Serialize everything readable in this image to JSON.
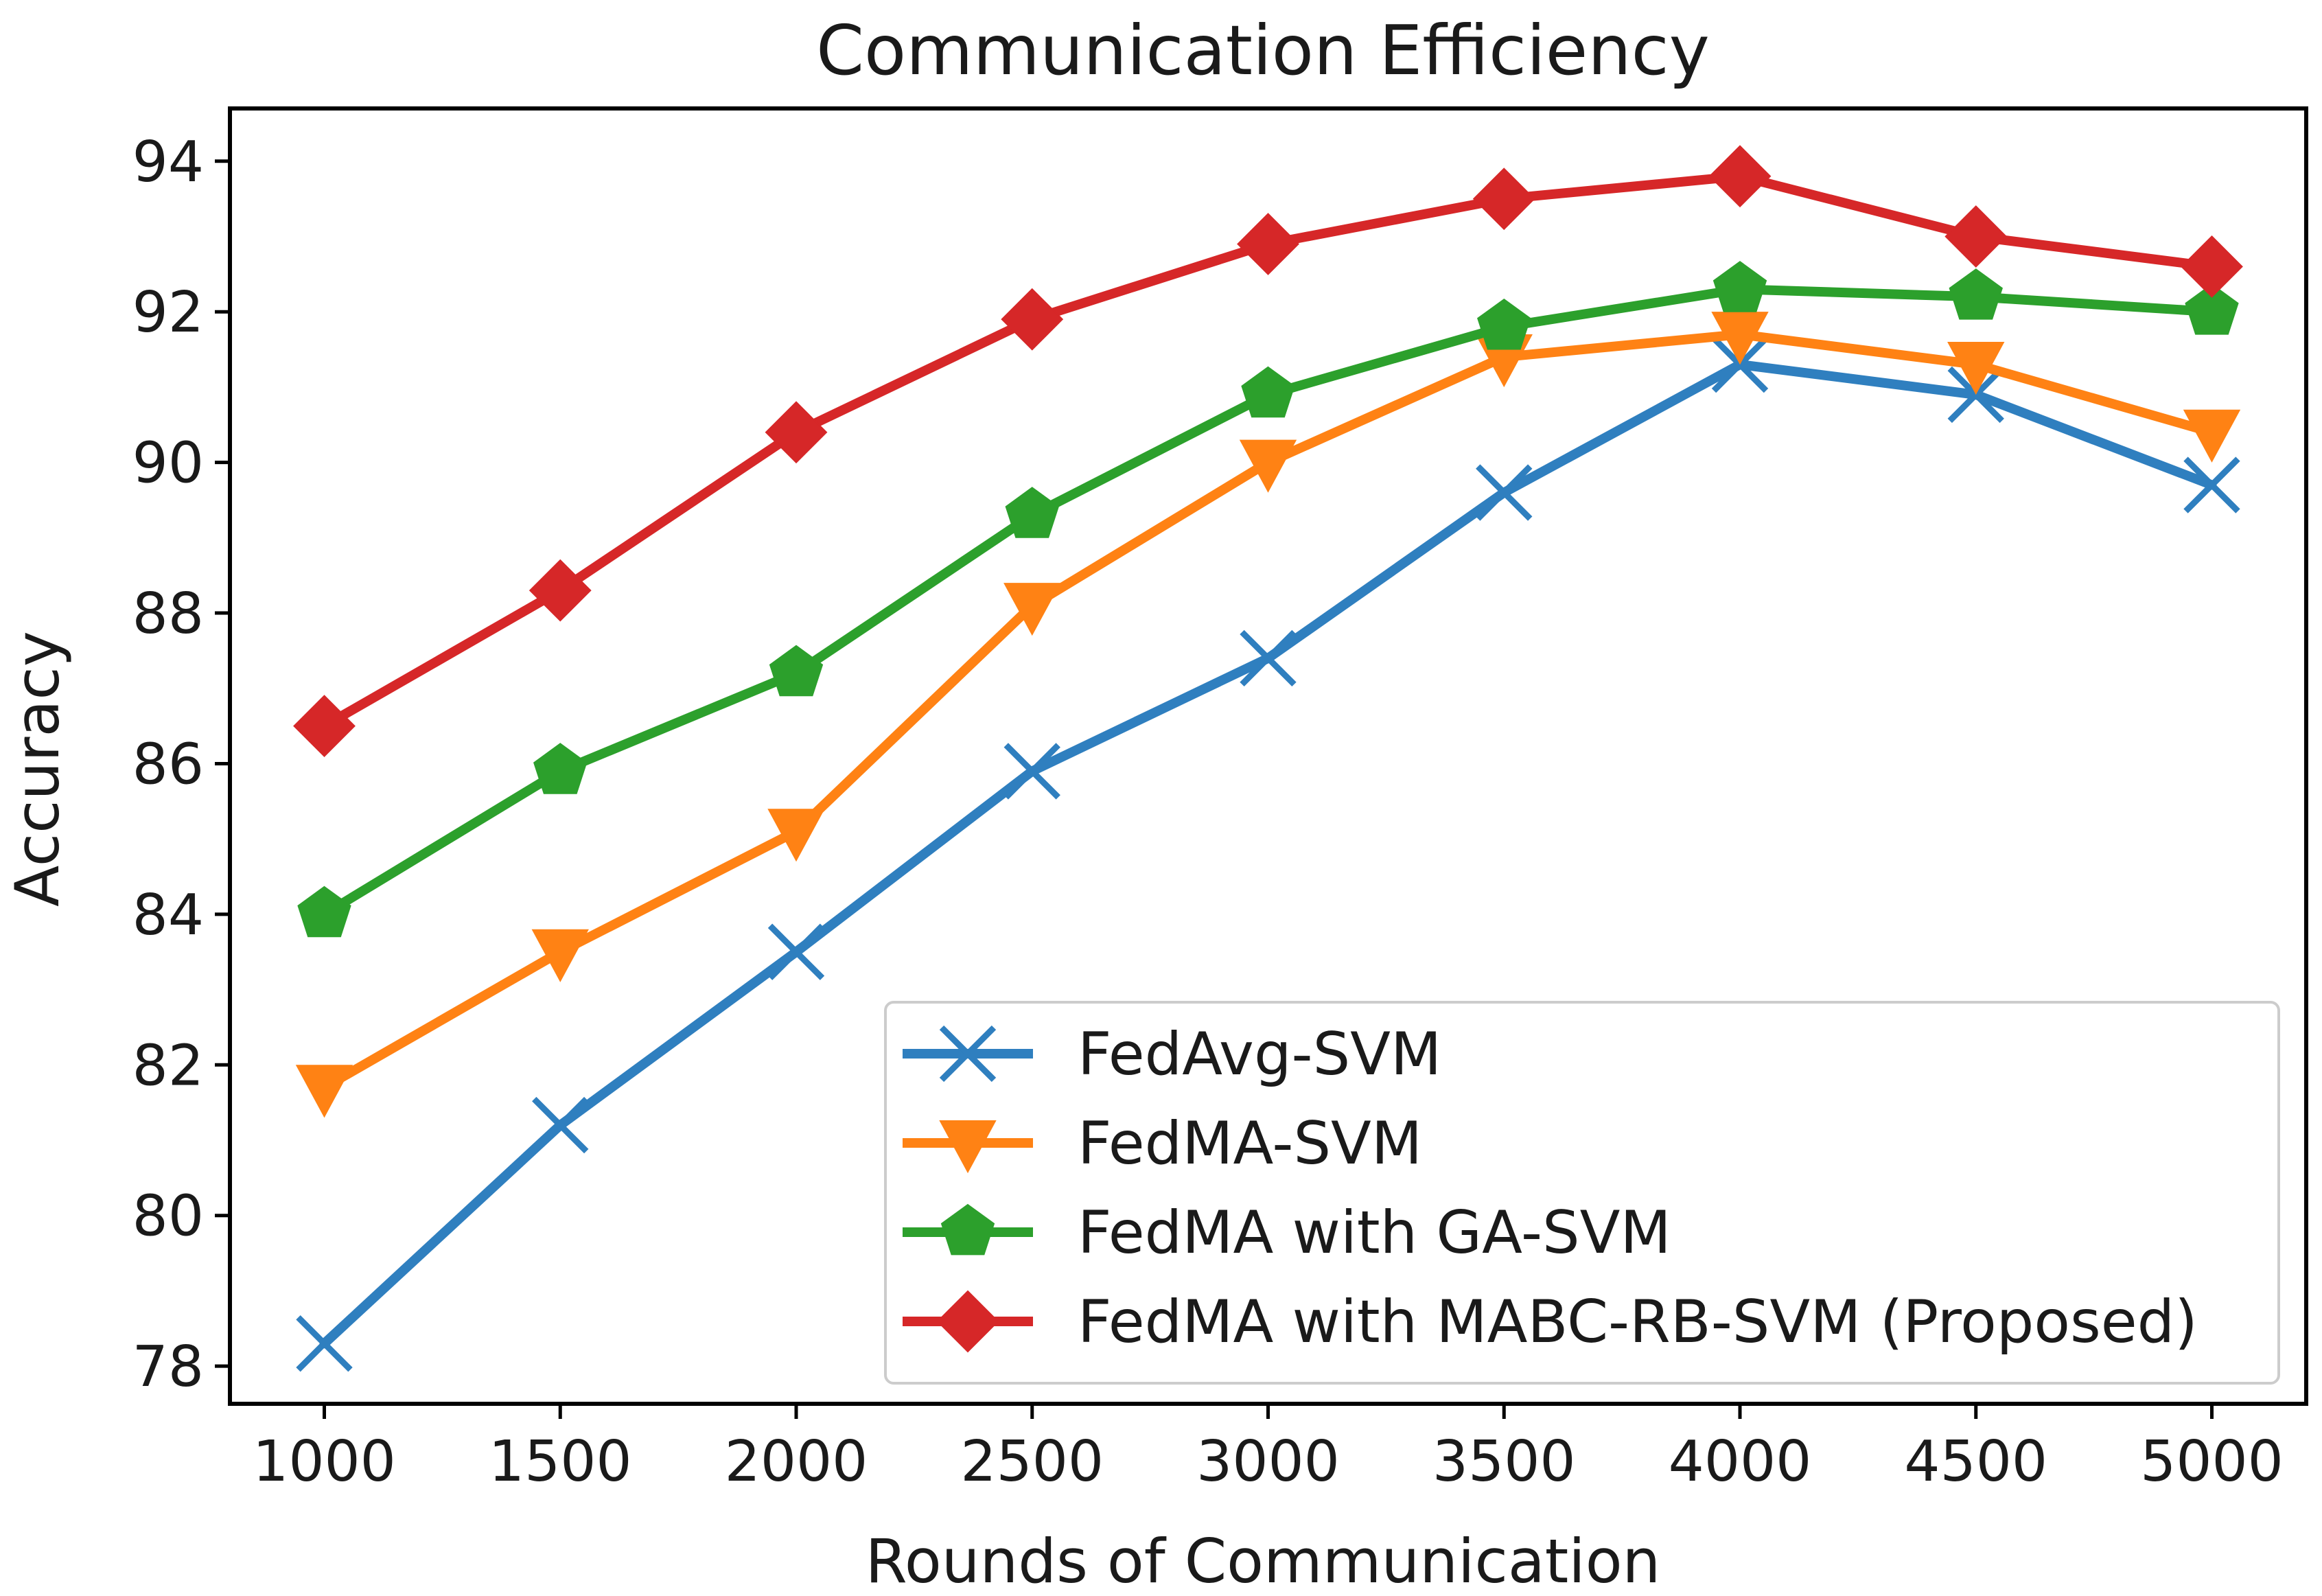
{
  "chart_data": {
    "type": "line",
    "title": "Communication Efficiency",
    "xlabel": "Rounds of Communication",
    "ylabel": "Accuracy",
    "x": [
      1000,
      1500,
      2000,
      2500,
      3000,
      3500,
      4000,
      4500,
      5000
    ],
    "xlim": [
      800,
      5200
    ],
    "ylim": [
      77.5,
      94.7
    ],
    "xticks": [
      "1000",
      "1500",
      "2000",
      "2500",
      "3000",
      "3500",
      "4000",
      "4500",
      "5000"
    ],
    "yticks": [
      "78",
      "80",
      "82",
      "84",
      "86",
      "88",
      "90",
      "92",
      "94"
    ],
    "ytick_values": [
      78,
      80,
      82,
      84,
      86,
      88,
      90,
      92,
      94
    ],
    "grid": false,
    "legend_position": "lower-right",
    "series": [
      {
        "name": "FedAvg-SVM",
        "marker": "x",
        "color": "#2f7fbf",
        "values": [
          78.3,
          81.2,
          83.5,
          85.9,
          87.4,
          89.6,
          91.3,
          90.9,
          89.7
        ]
      },
      {
        "name": "FedMA-SVM",
        "marker": "triangle-down",
        "color": "#ff8214",
        "values": [
          81.7,
          83.5,
          85.1,
          88.1,
          90.0,
          91.4,
          91.7,
          91.3,
          90.4
        ]
      },
      {
        "name": "FedMA with GA-SVM",
        "marker": "pentagon",
        "color": "#2ca02c",
        "values": [
          84.0,
          85.9,
          87.2,
          89.3,
          90.9,
          91.8,
          92.3,
          92.2,
          92.0
        ]
      },
      {
        "name": "FedMA with MABC-RB-SVM (Proposed)",
        "marker": "diamond",
        "color": "#d62728",
        "values": [
          86.5,
          88.3,
          90.4,
          91.9,
          92.9,
          93.5,
          93.8,
          93.0,
          92.6
        ]
      }
    ]
  }
}
